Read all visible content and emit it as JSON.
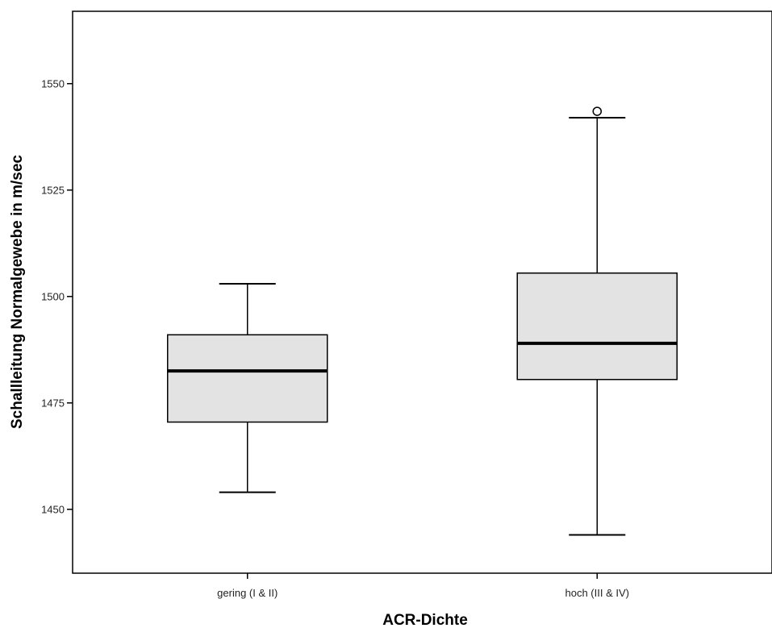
{
  "chart_data": {
    "type": "boxplot",
    "xlabel": "ACR-Dichte",
    "ylabel": "Schallleitung Normalgewebe in m/sec",
    "ylim": [
      1435,
      1567
    ],
    "yticks": [
      1450,
      1475,
      1500,
      1525,
      1550
    ],
    "categories": [
      "gering (I & II)",
      "hoch (III & IV)"
    ],
    "boxes": [
      {
        "category": "gering (I & II)",
        "whisker_low": 1454,
        "q1": 1470.5,
        "median": 1482.5,
        "q3": 1491,
        "whisker_high": 1503,
        "outliers": []
      },
      {
        "category": "hoch (III & IV)",
        "whisker_low": 1444,
        "q1": 1480.5,
        "median": 1489,
        "q3": 1505.5,
        "whisker_high": 1542,
        "outliers": [
          1543.5
        ]
      }
    ],
    "box_fill": "#e3e3e3",
    "line_color": "#000000",
    "grid": false,
    "legend": "none"
  }
}
